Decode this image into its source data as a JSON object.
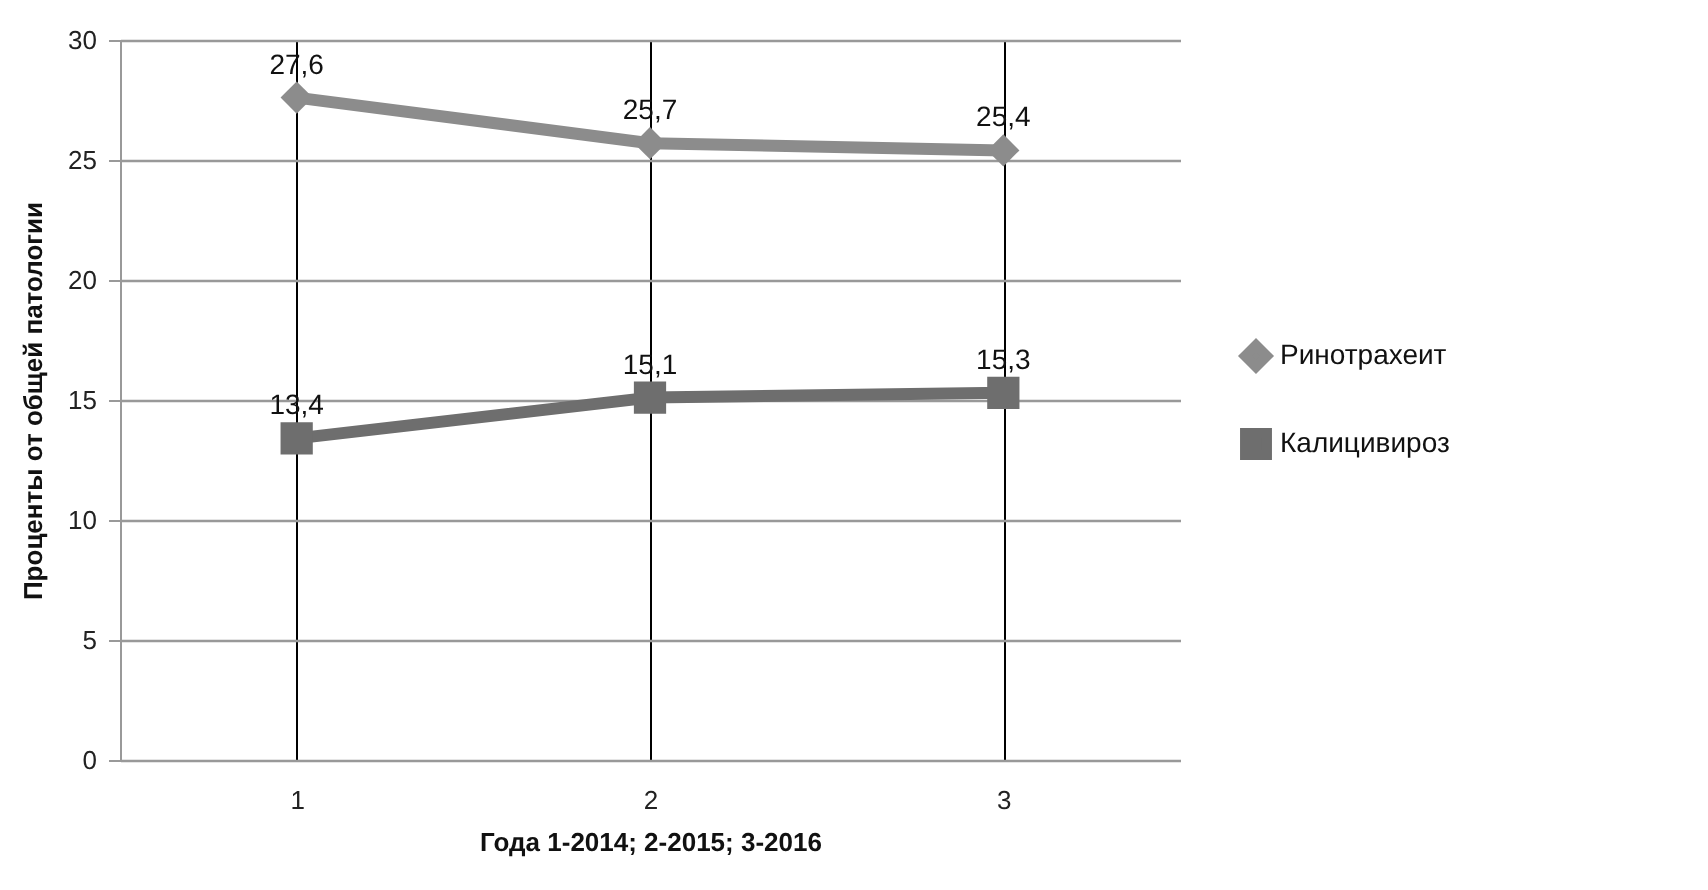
{
  "chart_data": {
    "type": "line",
    "categories": [
      "1",
      "2",
      "3"
    ],
    "xlabel": "Года 1-2014; 2-2015; 3-2016",
    "ylabel": "Проценты от общей патологии",
    "ylim": [
      0,
      30
    ],
    "yticks": [
      0,
      5,
      10,
      15,
      20,
      25,
      30
    ],
    "grid": true,
    "legend": "right",
    "series": [
      {
        "name": "Ринотрахеит",
        "color": "#8c8c8c",
        "marker": "diamond",
        "values": [
          27.6,
          25.7,
          25.4
        ],
        "value_labels": [
          "27,6",
          "25,7",
          "25,4"
        ]
      },
      {
        "name": "Калицивироз",
        "color": "#6e6e6e",
        "marker": "square",
        "values": [
          13.4,
          15.1,
          15.3
        ],
        "value_labels": [
          "13,4",
          "15,1",
          "15,3"
        ]
      }
    ]
  }
}
